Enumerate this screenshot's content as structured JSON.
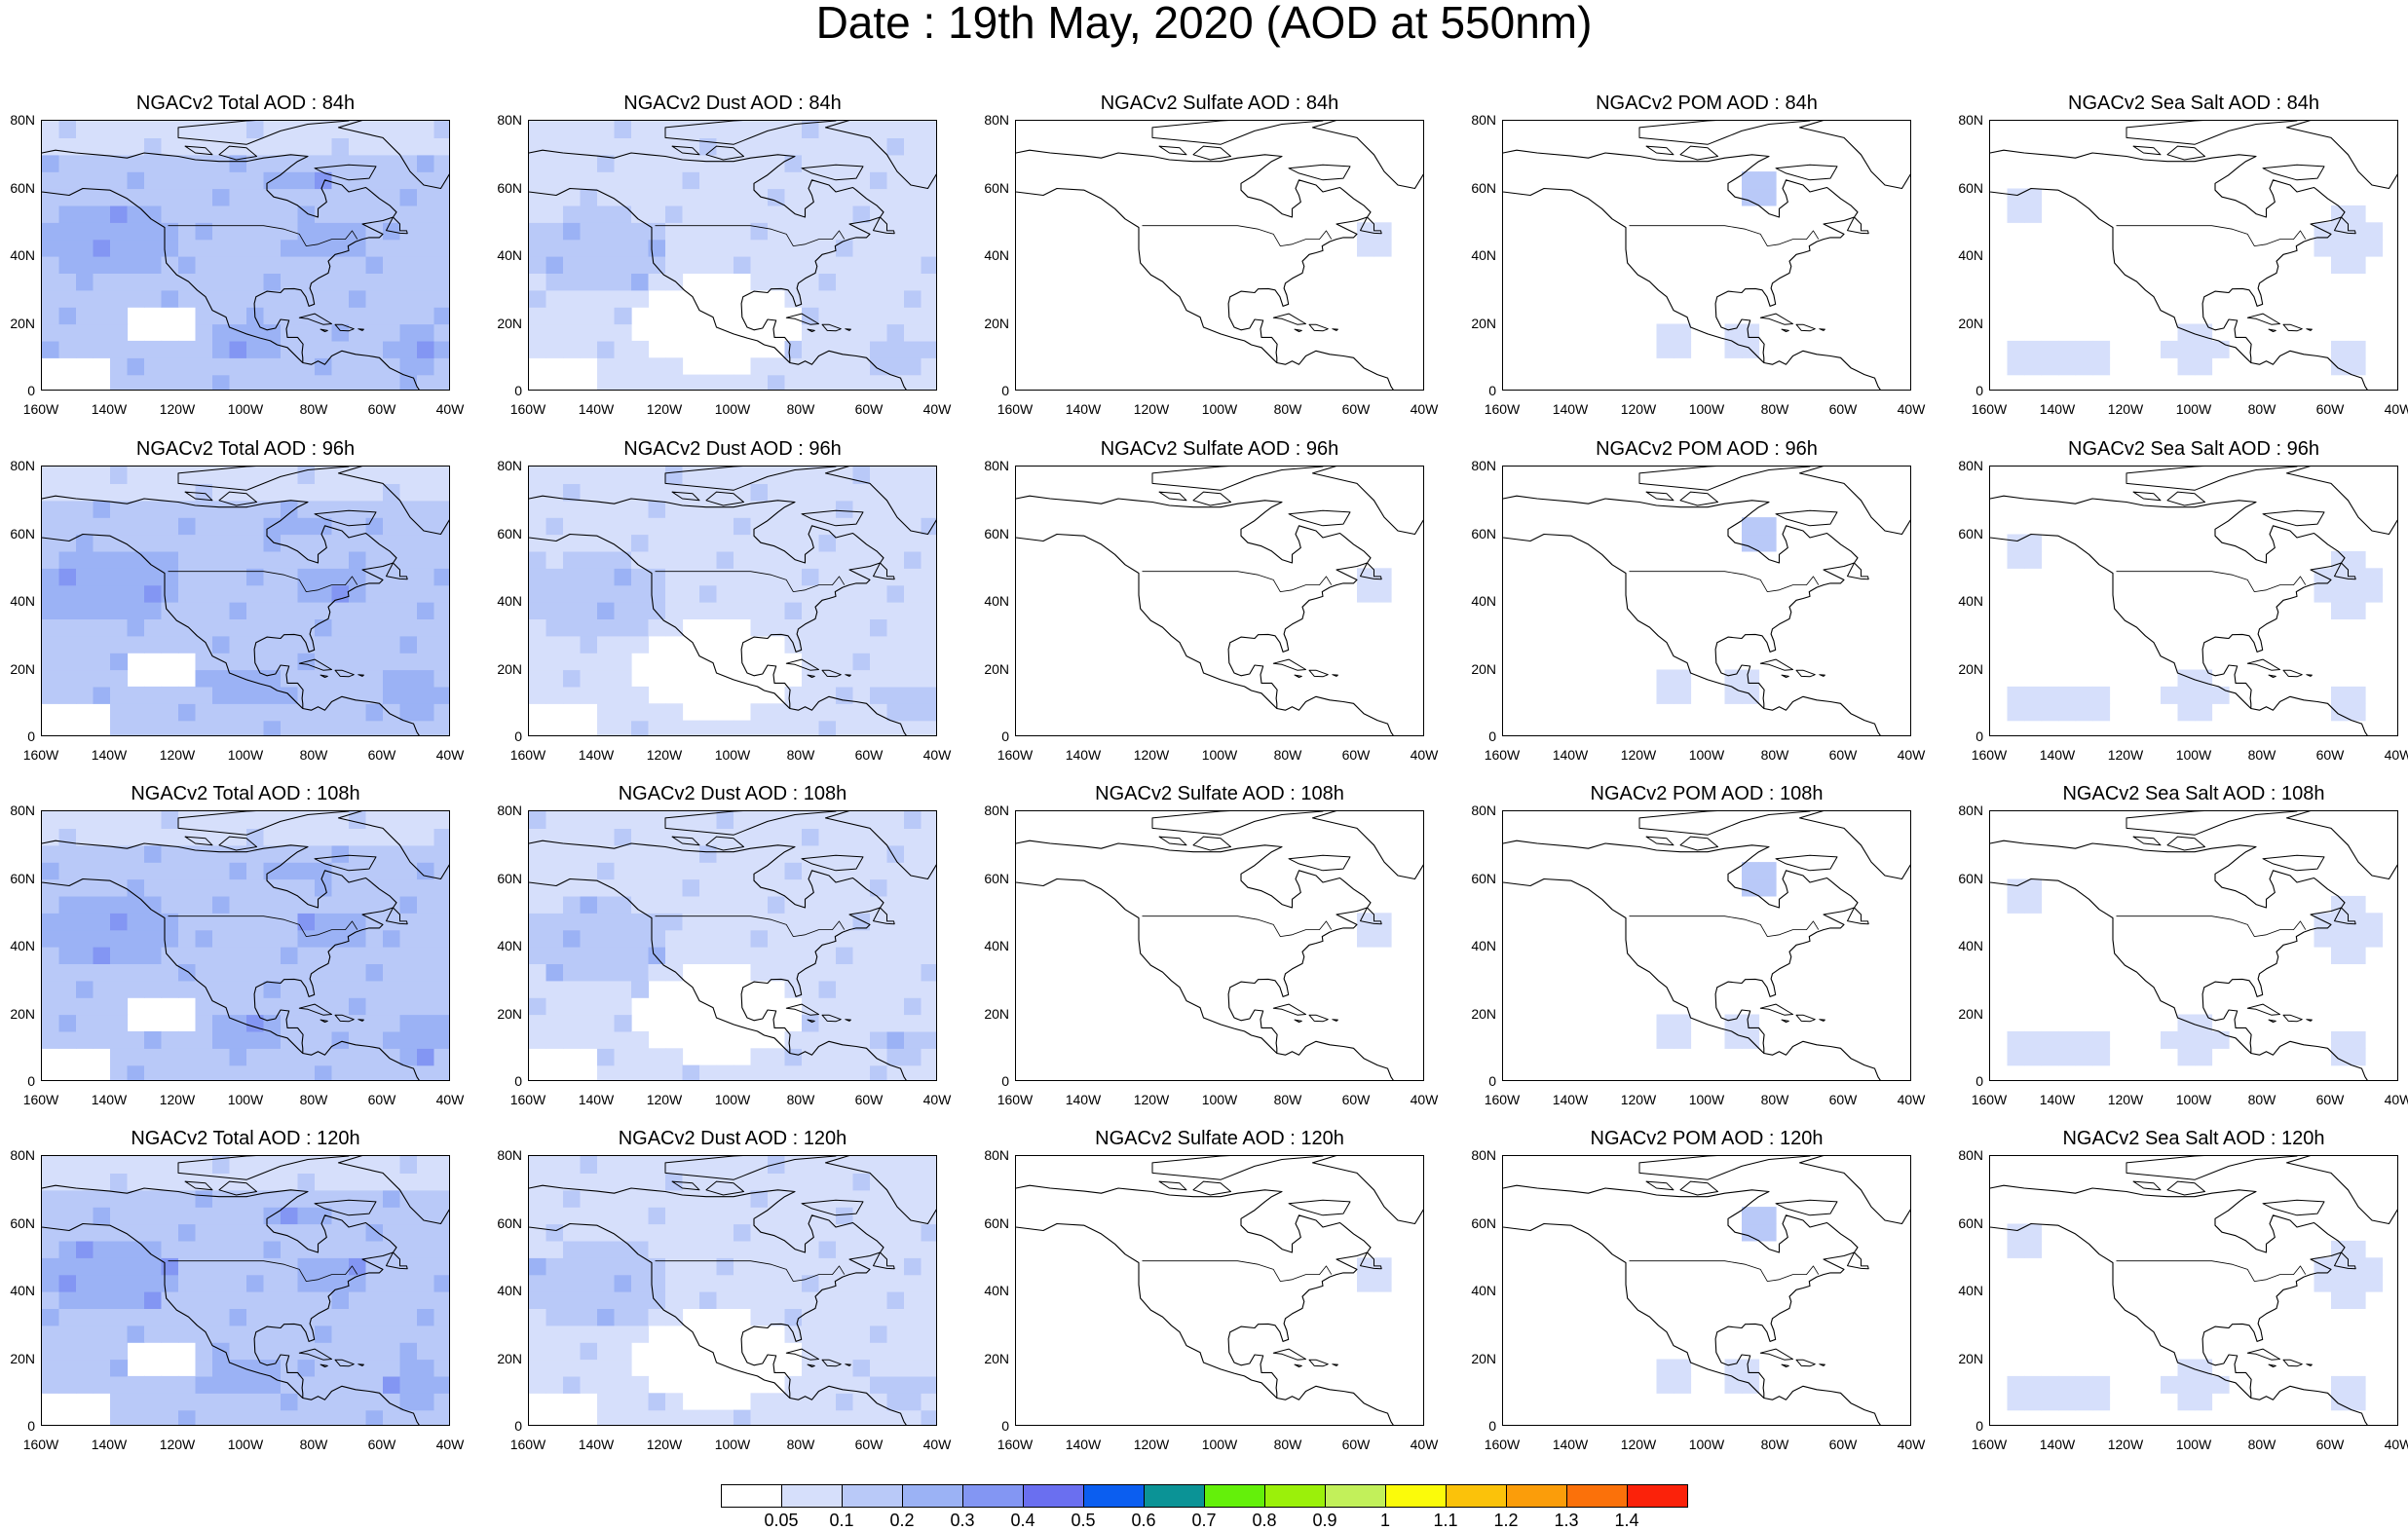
{
  "title": "Date : 19th May, 2020 (AOD at 550nm)",
  "columns": [
    "Total",
    "Dust",
    "Sulfate",
    "POM",
    "Sea Salt"
  ],
  "panel_titles": [
    [
      "NGACv2 Total AOD : 84h",
      "NGACv2 Dust AOD : 84h",
      "NGACv2 Sulfate AOD : 84h",
      "NGACv2 POM AOD : 84h",
      "NGACv2 Sea Salt AOD : 84h"
    ],
    [
      "NGACv2 Total AOD : 96h",
      "NGACv2 Dust AOD : 96h",
      "NGACv2 Sulfate AOD : 96h",
      "NGACv2 POM AOD : 96h",
      "NGACv2 Sea Salt AOD : 96h"
    ],
    [
      "NGACv2 Total AOD : 108h",
      "NGACv2 Dust AOD : 108h",
      "NGACv2 Sulfate AOD : 108h",
      "NGACv2 POM AOD : 108h",
      "NGACv2 Sea Salt AOD : 108h"
    ],
    [
      "NGACv2 Total AOD : 120h",
      "NGACv2 Dust AOD : 120h",
      "NGACv2 Sulfate AOD : 120h",
      "NGACv2 POM AOD : 120h",
      "NGACv2 Sea Salt  AOD : 120h"
    ]
  ],
  "y_tick_labels": [
    "80N",
    "60N",
    "40N",
    "20N",
    "0"
  ],
  "x_tick_labels": [
    "160W",
    "140W",
    "120W",
    "100W",
    "80W",
    "60W",
    "40W"
  ],
  "map_extent": {
    "lon": [
      -160,
      -40
    ],
    "lat": [
      0,
      80
    ]
  },
  "colorbar": {
    "colors": [
      "#ffffff",
      "#d6dffb",
      "#b9c9f8",
      "#9bb2f5",
      "#8396f3",
      "#6a6ff0",
      "#0b5ef0",
      "#0b9396",
      "#64f00a",
      "#9bf00a",
      "#c2f05a",
      "#fbfb0a",
      "#fbc20a",
      "#fb9d0a",
      "#fb710a",
      "#fb220a"
    ],
    "labels": [
      "0.05",
      "0.1",
      "0.2",
      "0.3",
      "0.4",
      "0.5",
      "0.6",
      "0.7",
      "0.8",
      "0.9",
      "1",
      "1.1",
      "1.2",
      "1.3",
      "1.4"
    ]
  },
  "fields": {
    "Total": {
      "base_level": 2,
      "patches": [
        [
          -140,
          45,
          20,
          10,
          3
        ],
        [
          -100,
          15,
          12,
          6,
          3
        ],
        [
          -50,
          12,
          10,
          6,
          3
        ],
        [
          -85,
          62,
          8,
          4,
          3
        ],
        [
          -75,
          45,
          10,
          6,
          3
        ]
      ],
      "clear": [
        [
          -125,
          20,
          12,
          6
        ],
        [
          -150,
          5,
          10,
          6
        ]
      ]
    },
    "Dust": {
      "base_level": 1,
      "patches": [
        [
          -140,
          42,
          22,
          12,
          2
        ],
        [
          -50,
          12,
          8,
          5,
          2
        ]
      ],
      "clear": [
        [
          -105,
          20,
          25,
          14
        ],
        [
          -150,
          5,
          10,
          6
        ]
      ]
    },
    "Sulfate": {
      "base_level": 0,
      "patches": [
        [
          -55,
          45,
          6,
          4,
          1
        ]
      ],
      "clear": []
    },
    "POM": {
      "base_level": 0,
      "patches": [
        [
          -85,
          60,
          8,
          5,
          2
        ],
        [
          -110,
          15,
          8,
          5,
          1
        ],
        [
          -90,
          15,
          6,
          4,
          1
        ]
      ],
      "clear": []
    },
    "Sea Salt": {
      "base_level": 0,
      "patches": [
        [
          -55,
          45,
          10,
          8,
          1
        ],
        [
          -100,
          12,
          10,
          6,
          1
        ],
        [
          -140,
          10,
          15,
          5,
          1
        ],
        [
          -55,
          10,
          8,
          6,
          1
        ],
        [
          -150,
          55,
          6,
          6,
          1
        ]
      ],
      "clear": []
    }
  }
}
